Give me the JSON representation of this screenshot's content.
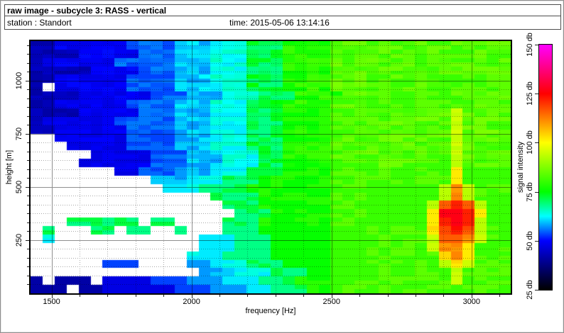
{
  "window": {
    "title": "raw image - subcycle 3: RASS - vertical",
    "station_label": "station : Standort",
    "time_label": "time: 2015-05-06 13:14:16"
  },
  "chart_data": {
    "type": "heatmap",
    "title": "raw image - subcycle 3: RASS - vertical",
    "xlabel": "frequency [Hz]",
    "ylabel": "height [m]",
    "colorbar_label": "signal intensity",
    "x_range": [
      1425,
      3140
    ],
    "y_range": [
      0,
      1185
    ],
    "x_ticks": [
      1500,
      2000,
      2500,
      3000
    ],
    "y_ticks": [
      250,
      500,
      750,
      1000
    ],
    "x_minor_step": 100,
    "y_minor_step": 41.666666667,
    "grid_on": true,
    "legend_position": "right-colorbar",
    "colorbar": {
      "min": 25,
      "max": 150,
      "ticks": [
        25,
        50,
        75,
        100,
        125,
        150
      ],
      "tick_suffix": " db",
      "stops": [
        [
          25,
          "#000000"
        ],
        [
          50,
          "#0000ff"
        ],
        [
          62.5,
          "#00ffff"
        ],
        [
          75,
          "#00ff00"
        ],
        [
          100,
          "#ffff00"
        ],
        [
          125,
          "#ff0000"
        ],
        [
          150,
          "#ff00ff"
        ]
      ]
    },
    "grid": {
      "cols": 40,
      "rows": 30,
      "no_data_char": ".",
      "no_data_color": "#ffffff",
      "level_db": {
        "1": 43,
        "2": 49,
        "3": 55,
        "4": 60,
        "5": 64,
        "6": 72,
        "7": 79,
        "8": 84,
        "9": 95,
        "a": 104,
        "b": 112,
        "c": 118,
        "d": 124,
        "e": 129
      },
      "rows_top_to_bottom": [
        "1122222233334445556667777888888888888888",
        "1111222223334445556667777888888888888888",
        "1222222333334445556667777888888888888888",
        "1111122223334445556667777888888888888888",
        "1122222233334445556667777888888888888888",
        "1.22222233334445556667777888888888888888",
        "1111222222333444555666777788888888888888",
        "1122222233334445556667777888888888888888",
        "1111222223334445556667777888888888898888",
        "1222222333334445556667777888888888898888",
        "1122222233334445556667777888888888898888",
        "..22222233334445556667777888888888898888",
        "...2222233334445556667777888888888898888",
        ".....22222333444555667777888888888898888",
        "....222222333444555667777888888888898888",
        ".......2233344455566677778888888888a8888",
        "..........4445556667777778888888888a8888",
        "...........555666677777778888888889b9888",
        "...............66667777778888888889b9888",
        "................666777777888888889cdc988",
        ".................6667777788888888aeeda88",
        "...666666.66....66677777788888888aded988",
        ".6...66.66..6...66677777788888888acdc988",
        ".5............55566677777888888889ccb988",
        "..............55566677777888888889bba888",
        ".............555666677777888888888aba888",
        "......333....4455566677778888888889a9888",
        "..............44455566677888888888898888",
        "1.111.2222333444555666777888888888898888",
        "111.112222223334445566677888888888888888"
      ]
    }
  }
}
